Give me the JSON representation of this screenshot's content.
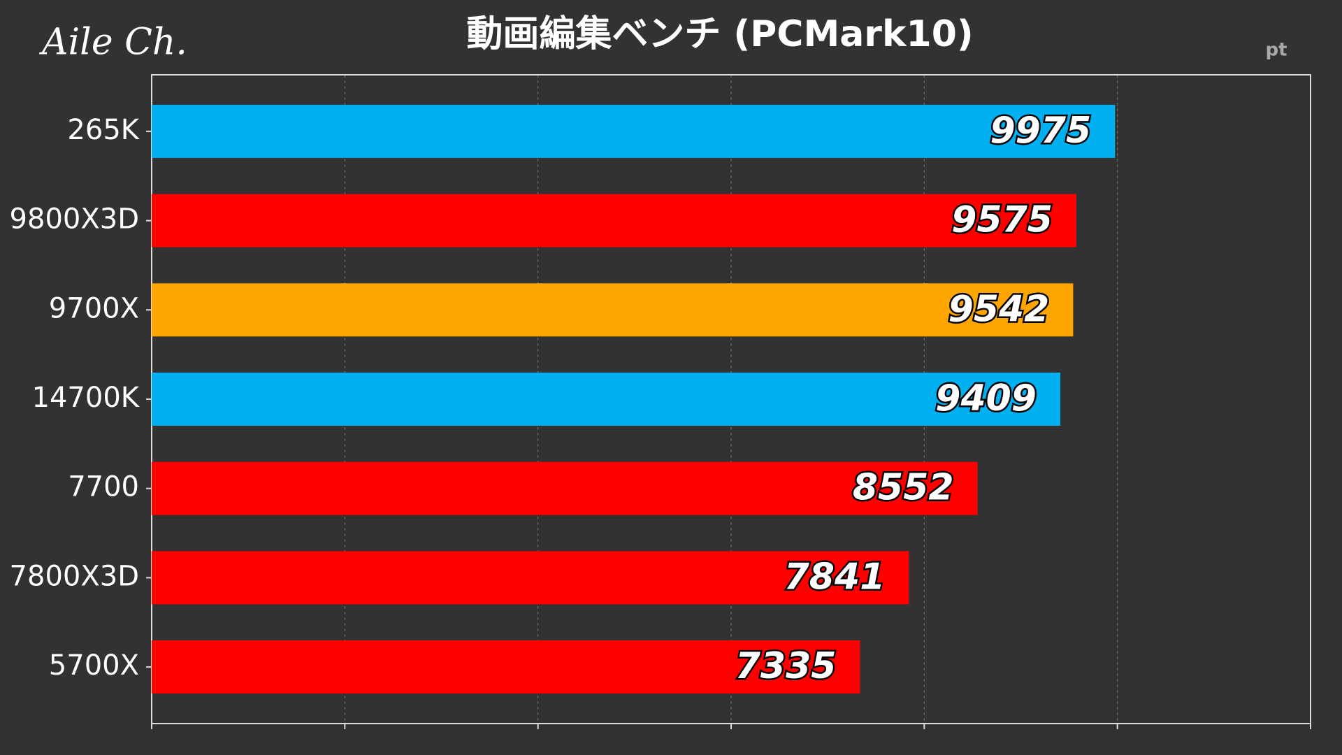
{
  "chart_data": {
    "type": "hbar",
    "title": "動画編集ベンチ (PCMark10)",
    "watermark": "Aile Ch.",
    "unit": "pt",
    "categories": [
      "265K",
      "9800X3D",
      "9700X",
      "14700K",
      "7700",
      "7800X3D",
      "5700X"
    ],
    "values": [
      9975,
      9575,
      9542,
      9409,
      8552,
      7841,
      7335
    ],
    "colors": [
      "#00b0f0",
      "#ff0000",
      "#ffa500",
      "#00b0f0",
      "#ff0000",
      "#ff0000",
      "#ff0000"
    ],
    "xlim": [
      0,
      12000
    ],
    "xticks": [
      0,
      2000,
      4000,
      6000,
      8000,
      10000,
      12000
    ],
    "grid": true
  }
}
